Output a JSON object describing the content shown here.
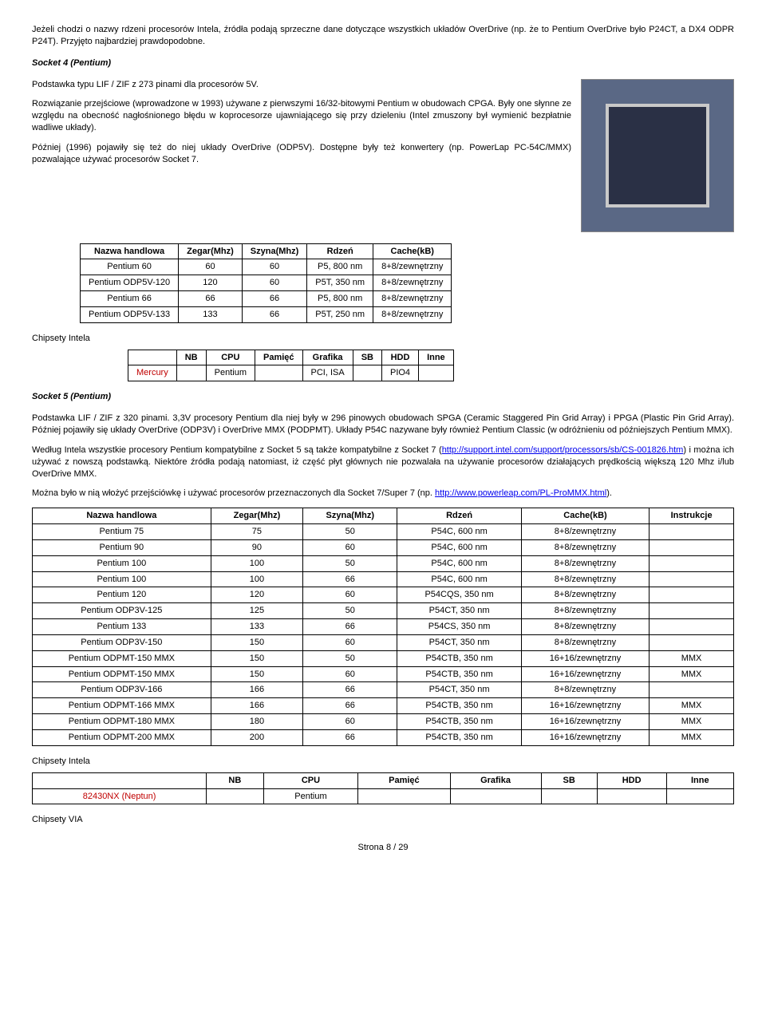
{
  "intro": "Jeżeli chodzi o nazwy rdzeni procesorów Intela, źródła podają sprzeczne dane dotyczące wszystkich układów OverDrive (np. że to Pentium OverDrive było P24CT, a DX4 ODPR P24T). Przyjęto najbardziej prawdopodobne.",
  "s4": {
    "title": "Socket 4 (Pentium)",
    "p1": "Podstawka typu LIF / ZIF z 273 pinami dla procesorów 5V.",
    "p2": "Rozwiązanie przejściowe (wprowadzone w 1993) używane z pierwszymi 16/32-bitowymi Pentium w obudowach CPGA. Były one słynne ze względu na obecność nagłośnionego błędu w koprocesorze ujawniającego się przy dzieleniu (Intel zmuszony był wymienić bezpłatnie wadliwe układy).",
    "p3": "Później (1996) pojawiły się też do niej układy OverDrive (ODP5V). Dostępne były też konwertery (np. PowerLap PC-54C/MMX) pozwalające używać procesorów Socket 7.",
    "t1": {
      "cols": [
        "Nazwa handlowa",
        "Zegar(Mhz)",
        "Szyna(Mhz)",
        "Rdzeń",
        "Cache(kB)"
      ],
      "rows": [
        [
          "Pentium 60",
          "60",
          "60",
          "P5, 800 nm",
          "8+8/zewnętrzny"
        ],
        [
          "Pentium ODP5V-120",
          "120",
          "60",
          "P5T, 350 nm",
          "8+8/zewnętrzny"
        ],
        [
          "Pentium 66",
          "66",
          "66",
          "P5, 800 nm",
          "8+8/zewnętrzny"
        ],
        [
          "Pentium ODP5V-133",
          "133",
          "66",
          "P5T, 250 nm",
          "8+8/zewnętrzny"
        ]
      ]
    },
    "chipset_label": "Chipsety Intela",
    "t2": {
      "cols": [
        "",
        "NB",
        "CPU",
        "Pamięć",
        "Grafika",
        "SB",
        "HDD",
        "Inne"
      ],
      "rows": [
        [
          "Mercury",
          "",
          "Pentium",
          "",
          "PCI, ISA",
          "",
          "PIO4",
          ""
        ]
      ]
    }
  },
  "s5": {
    "title": "Socket 5 (Pentium)",
    "p1": "Podstawka LIF / ZIF z 320 pinami. 3,3V procesory Pentium dla niej były w 296 pinowych obudowach SPGA (Ceramic Staggered Pin Grid Array) i PPGA (Plastic Pin Grid Array). Później pojawiły się układy OverDrive (ODP3V) i OverDrive MMX (PODPMT). Układy P54C nazywane były również Pentium Classic (w odróżnieniu od późniejszych Pentium MMX).",
    "p2a": "Według Intela wszystkie procesory Pentium kompatybilne z Socket 5 są także kompatybilne z Socket 7 (",
    "p2link": "http://support.intel.com/support/processors/sb/CS-001826.htm",
    "p2b": ") i można ich używać z nowszą podstawką. Niektóre źródła podają natomiast, iż część płyt głównych nie pozwalała na używanie procesorów działających prędkością większą 120 Mhz i/lub OverDrive MMX.",
    "p3a": "Można było w nią włożyć przejściówkę i używać procesorów przeznaczonych dla Socket 7/Super 7 (np. ",
    "p3link": "http://www.powerleap.com/PL-ProMMX.html",
    "p3b": ").",
    "t1": {
      "cols": [
        "Nazwa handlowa",
        "Zegar(Mhz)",
        "Szyna(Mhz)",
        "Rdzeń",
        "Cache(kB)",
        "Instrukcje"
      ],
      "rows": [
        [
          "Pentium 75",
          "75",
          "50",
          "P54C, 600 nm",
          "8+8/zewnętrzny",
          ""
        ],
        [
          "Pentium 90",
          "90",
          "60",
          "P54C, 600 nm",
          "8+8/zewnętrzny",
          ""
        ],
        [
          "Pentium 100",
          "100",
          "50",
          "P54C, 600 nm",
          "8+8/zewnętrzny",
          ""
        ],
        [
          "Pentium 100",
          "100",
          "66",
          "P54C, 600 nm",
          "8+8/zewnętrzny",
          ""
        ],
        [
          "Pentium 120",
          "120",
          "60",
          "P54CQS, 350 nm",
          "8+8/zewnętrzny",
          ""
        ],
        [
          "Pentium ODP3V-125",
          "125",
          "50",
          "P54CT, 350 nm",
          "8+8/zewnętrzny",
          ""
        ],
        [
          "Pentium 133",
          "133",
          "66",
          "P54CS, 350 nm",
          "8+8/zewnętrzny",
          ""
        ],
        [
          "Pentium ODP3V-150",
          "150",
          "60",
          "P54CT, 350 nm",
          "8+8/zewnętrzny",
          ""
        ],
        [
          "Pentium ODPMT-150 MMX",
          "150",
          "50",
          "P54CTB, 350 nm",
          "16+16/zewnętrzny",
          "MMX"
        ],
        [
          "Pentium ODPMT-150 MMX",
          "150",
          "60",
          "P54CTB, 350 nm",
          "16+16/zewnętrzny",
          "MMX"
        ],
        [
          "Pentium ODP3V-166",
          "166",
          "66",
          "P54CT, 350 nm",
          "8+8/zewnętrzny",
          ""
        ],
        [
          "Pentium ODPMT-166 MMX",
          "166",
          "66",
          "P54CTB, 350 nm",
          "16+16/zewnętrzny",
          "MMX"
        ],
        [
          "Pentium ODPMT-180 MMX",
          "180",
          "60",
          "P54CTB, 350 nm",
          "16+16/zewnętrzny",
          "MMX"
        ],
        [
          "Pentium ODPMT-200 MMX",
          "200",
          "66",
          "P54CTB, 350 nm",
          "16+16/zewnętrzny",
          "MMX"
        ]
      ]
    },
    "chipset_intel": "Chipsety Intela",
    "t2": {
      "cols": [
        "",
        "NB",
        "CPU",
        "Pamięć",
        "Grafika",
        "SB",
        "HDD",
        "Inne"
      ],
      "rows": [
        [
          "82430NX (Neptun)",
          "",
          "Pentium",
          "",
          "",
          "",
          "",
          ""
        ]
      ]
    },
    "chipset_via": "Chipsety VIA"
  },
  "footer": "Strona 8 / 29"
}
